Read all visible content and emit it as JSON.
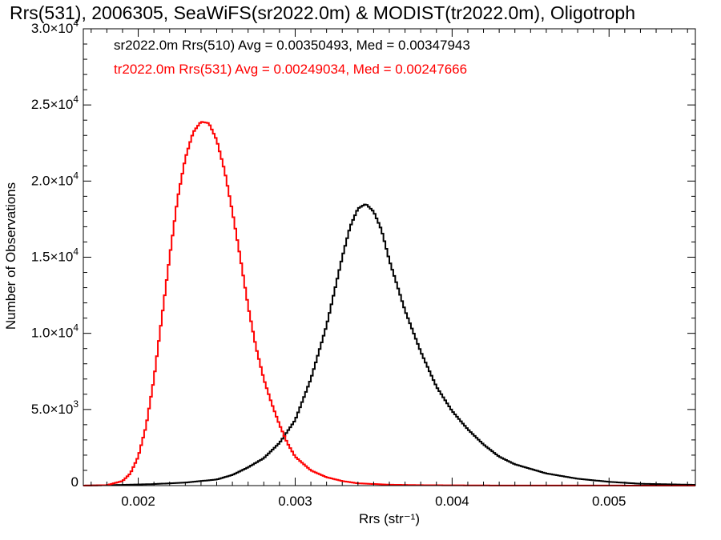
{
  "title": "Rrs(531), 2006305, SeaWiFS(sr2022.0m) & MODIST(tr2022.0m), Oligotroph",
  "chart_data": {
    "type": "line",
    "xlabel": "Rrs (str⁻¹)",
    "ylabel": "Number of Observations",
    "xlim": [
      0.00165,
      0.00555
    ],
    "ylim": [
      0,
      30000
    ],
    "x_ticks": [
      {
        "value": 0.002,
        "label": "0.002"
      },
      {
        "value": 0.003,
        "label": "0.003"
      },
      {
        "value": 0.004,
        "label": "0.004"
      },
      {
        "value": 0.005,
        "label": "0.005"
      }
    ],
    "y_ticks": [
      {
        "value": 0,
        "mantissa": "0",
        "exp": ""
      },
      {
        "value": 5000,
        "mantissa": "5.0×10",
        "exp": "3"
      },
      {
        "value": 10000,
        "mantissa": "1.0×10",
        "exp": "4"
      },
      {
        "value": 15000,
        "mantissa": "1.5×10",
        "exp": "4"
      },
      {
        "value": 20000,
        "mantissa": "2.0×10",
        "exp": "4"
      },
      {
        "value": 25000,
        "mantissa": "2.5×10",
        "exp": "4"
      },
      {
        "value": 30000,
        "mantissa": "3.0×10",
        "exp": "4"
      }
    ],
    "annotations": [
      {
        "text": "sr2022.0m Rrs(510) Avg = 0.00350493, Med = 0.00347943",
        "color": "#000000"
      },
      {
        "text": "tr2022.0m Rrs(531) Avg = 0.00249034, Med = 0.00247666",
        "color": "#ff0000"
      }
    ],
    "series": [
      {
        "color": "#000000",
        "x": [
          0.00165,
          0.0019,
          0.0021,
          0.0023,
          0.0025,
          0.0026,
          0.0027,
          0.0028,
          0.0029,
          0.003,
          0.0031,
          0.0032,
          0.0033,
          0.00335,
          0.0034,
          0.00345,
          0.0035,
          0.00355,
          0.0036,
          0.0037,
          0.0038,
          0.0039,
          0.004,
          0.0041,
          0.0042,
          0.0043,
          0.0044,
          0.0046,
          0.0048,
          0.005,
          0.0052,
          0.00555
        ],
        "y": [
          0,
          50,
          100,
          200,
          400,
          700,
          1200,
          1800,
          2800,
          4300,
          7000,
          10500,
          15000,
          17000,
          18200,
          18500,
          18000,
          16800,
          14800,
          11500,
          8800,
          6500,
          4900,
          3700,
          2700,
          1900,
          1400,
          800,
          450,
          250,
          120,
          50
        ]
      },
      {
        "color": "#ff0000",
        "x": [
          0.00165,
          0.0018,
          0.0019,
          0.00195,
          0.002,
          0.00205,
          0.0021,
          0.00215,
          0.0022,
          0.00225,
          0.0023,
          0.00235,
          0.0024,
          0.00245,
          0.0025,
          0.00255,
          0.0026,
          0.00265,
          0.0027,
          0.00275,
          0.0028,
          0.00285,
          0.0029,
          0.00295,
          0.003,
          0.0031,
          0.0032,
          0.0033,
          0.0034,
          0.0036,
          0.0038,
          0.0042,
          0.00555
        ],
        "y": [
          0,
          30,
          300,
          800,
          1900,
          3900,
          7000,
          11000,
          15000,
          18800,
          21500,
          23200,
          23900,
          23800,
          22700,
          20700,
          18000,
          15000,
          11800,
          9100,
          7000,
          5400,
          4000,
          2800,
          1900,
          1000,
          550,
          300,
          150,
          60,
          30,
          10,
          0
        ]
      }
    ]
  }
}
